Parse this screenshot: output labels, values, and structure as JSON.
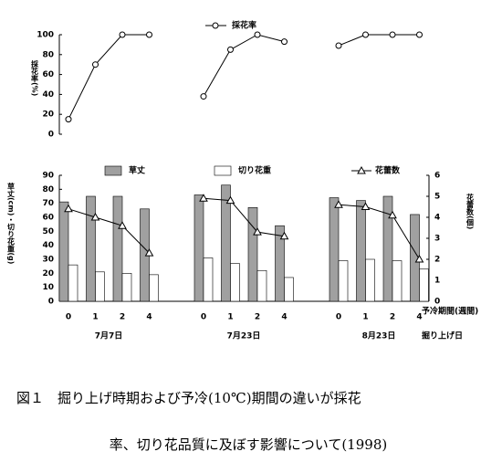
{
  "chart_data": [
    {
      "type": "line",
      "groups": [
        "7月7日",
        "7月23日",
        "8月23日"
      ],
      "ylabel": "採花率(%)",
      "series": [
        {
          "name": "採花率",
          "color": "#000000",
          "marker": "circle",
          "values": [
            15,
            70,
            100,
            100,
            38,
            85,
            100,
            93,
            89,
            100,
            100,
            100
          ]
        }
      ],
      "ylim": [
        0,
        100
      ],
      "yticks": [
        0,
        20,
        40,
        60,
        80,
        100
      ]
    },
    {
      "type": "bar",
      "groups": [
        "7月7日",
        "7月23日",
        "8月23日"
      ],
      "categories": [
        "0",
        "1",
        "2",
        "4",
        "0",
        "1",
        "2",
        "4",
        "0",
        "1",
        "2",
        "4"
      ],
      "xlabel": "予冷期間(週間)",
      "group_label": "掘り上げ日",
      "ylabel": "草丈(cm)・切り花重(g)",
      "y2label": "花蕾数(個)",
      "series": [
        {
          "name": "草丈",
          "color": "#a0a0a0",
          "values": [
            71,
            75,
            75,
            66,
            76,
            83,
            67,
            54,
            74,
            72,
            75,
            62
          ]
        },
        {
          "name": "切り花重",
          "color": "#ffffff",
          "values": [
            26,
            21,
            20,
            19,
            31,
            27,
            22,
            17,
            29,
            30,
            29,
            23
          ]
        },
        {
          "name": "花蕾数",
          "color": "#000000",
          "axis": "y2",
          "type": "line",
          "marker": "triangle",
          "values": [
            4.4,
            4.0,
            3.6,
            2.3,
            4.9,
            4.8,
            3.3,
            3.1,
            4.6,
            4.5,
            4.1,
            2.0
          ]
        }
      ],
      "ylim": [
        0,
        90
      ],
      "yticks": [
        0,
        10,
        20,
        30,
        40,
        50,
        60,
        70,
        80,
        90
      ],
      "y2lim": [
        0,
        6
      ],
      "y2ticks": [
        0,
        1,
        2,
        3,
        4,
        5,
        6
      ]
    }
  ],
  "caption": {
    "lines": [
      "図１　掘り上げ時期および予冷(10℃)期間の違いが採花",
      "率、切り花品質に及ぼす影響について(1998)"
    ]
  }
}
